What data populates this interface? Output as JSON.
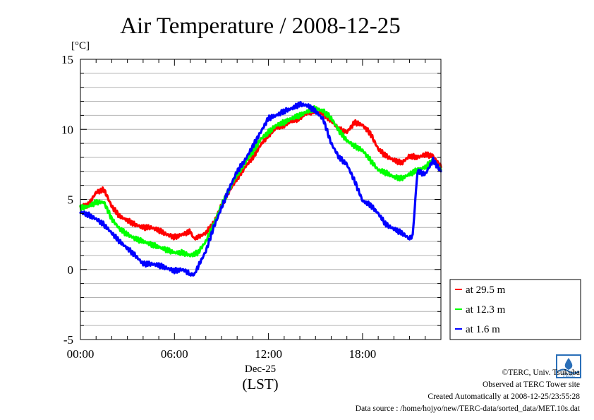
{
  "chart_data": {
    "type": "line",
    "title": "Air Temperature / 2008-12-25",
    "ylabel": "[°C]",
    "xlabel_date": "Dec-25",
    "xlabel_tz": "(LST)",
    "ylim": [
      -5,
      15
    ],
    "yticks": [
      "15",
      "10",
      "5",
      "0",
      "-5"
    ],
    "ytick_values": [
      15,
      10,
      5,
      0,
      -5
    ],
    "xlim": [
      0,
      23
    ],
    "xticks": [
      "00:00",
      "06:00",
      "12:00",
      "18:00"
    ],
    "xtick_values": [
      0,
      6,
      12,
      18
    ],
    "grid": true,
    "legend_position": "right",
    "series": [
      {
        "name": "at 29.5 m",
        "color": "#ff0000",
        "x": [
          0,
          0.5,
          1,
          1.5,
          2,
          2.5,
          3,
          3.5,
          4,
          4.5,
          5,
          5.5,
          6,
          6.5,
          7,
          7.25,
          7.5,
          8,
          8.5,
          9,
          9.5,
          10,
          10.5,
          11,
          11.5,
          12,
          12.5,
          13,
          13.5,
          14,
          14.5,
          15,
          15.5,
          16,
          16.5,
          17,
          17.5,
          18,
          18.5,
          19,
          19.5,
          20,
          20.5,
          21,
          21.5,
          22,
          22.5,
          23
        ],
        "values": [
          4.5,
          4.6,
          5.5,
          5.7,
          4.5,
          3.8,
          3.5,
          3.2,
          3.0,
          3.0,
          2.8,
          2.5,
          2.3,
          2.5,
          2.7,
          2.2,
          2.3,
          2.6,
          3.3,
          4.6,
          5.6,
          6.5,
          7.3,
          8.0,
          8.9,
          9.6,
          10.1,
          10.3,
          10.6,
          10.8,
          11.2,
          11.3,
          11.1,
          10.6,
          10.0,
          9.8,
          10.5,
          10.3,
          9.7,
          8.6,
          8.1,
          7.8,
          7.6,
          8.1,
          8.0,
          8.2,
          8.1,
          7.3
        ]
      },
      {
        "name": "at 12.3 m",
        "color": "#00ff00",
        "x": [
          0,
          0.5,
          1,
          1.5,
          2,
          2.5,
          3,
          3.5,
          4,
          4.5,
          5,
          5.5,
          6,
          6.5,
          7,
          7.5,
          8,
          8.5,
          9,
          9.5,
          10,
          10.5,
          11,
          11.5,
          12,
          12.5,
          13,
          13.5,
          14,
          14.5,
          15,
          15.5,
          16,
          16.5,
          17,
          17.5,
          18,
          18.5,
          19,
          19.5,
          20,
          20.5,
          21,
          21.5,
          22,
          22.5,
          23
        ],
        "values": [
          4.4,
          4.5,
          4.8,
          4.8,
          3.6,
          2.9,
          2.5,
          2.2,
          2.0,
          1.8,
          1.6,
          1.4,
          1.2,
          1.2,
          1.0,
          1.2,
          2.0,
          3.2,
          4.6,
          5.7,
          6.8,
          7.6,
          8.4,
          9.3,
          9.8,
          10.3,
          10.5,
          10.8,
          11.0,
          11.3,
          11.5,
          11.3,
          10.8,
          9.9,
          9.2,
          8.8,
          8.5,
          7.8,
          7.1,
          6.9,
          6.6,
          6.5,
          6.8,
          7.1,
          7.3,
          7.8,
          7.1
        ]
      },
      {
        "name": "at 1.6 m",
        "color": "#0000ff",
        "x": [
          0,
          0.5,
          1,
          1.5,
          2,
          2.5,
          3,
          3.5,
          4,
          4.5,
          5,
          5.5,
          6,
          6.5,
          7,
          7.25,
          7.5,
          8,
          8.5,
          9,
          9.5,
          10,
          10.5,
          11,
          11.5,
          12,
          12.5,
          13,
          13.5,
          14,
          14.5,
          15,
          15.5,
          16,
          16.5,
          17,
          17.5,
          18,
          18.5,
          19,
          19.5,
          20,
          20.5,
          21,
          21.2,
          21.5,
          22,
          22.5,
          23
        ],
        "values": [
          4.1,
          3.9,
          3.6,
          3.2,
          2.6,
          2.0,
          1.5,
          1.0,
          0.4,
          0.4,
          0.3,
          0.1,
          -0.1,
          0.0,
          -0.3,
          -0.4,
          0.2,
          1.3,
          3.0,
          4.4,
          5.8,
          7.0,
          7.8,
          8.8,
          9.8,
          10.8,
          11.0,
          11.3,
          11.5,
          11.8,
          11.7,
          11.3,
          10.7,
          9.0,
          8.0,
          7.5,
          6.3,
          4.9,
          4.6,
          4.0,
          3.2,
          2.9,
          2.6,
          2.2,
          2.4,
          7.0,
          6.8,
          7.8,
          7.0
        ]
      }
    ]
  },
  "footer": {
    "copyright": "©TERC, Univ. Tsukuba",
    "site": "Observed at TERC Tower site",
    "created": "Created Automatically at 2008-12-25/23:55:28",
    "source": "Data source : /home/hojyo/new/TERC-data/sorted_data/MET.10s.dat",
    "logo_text": "TERC"
  }
}
